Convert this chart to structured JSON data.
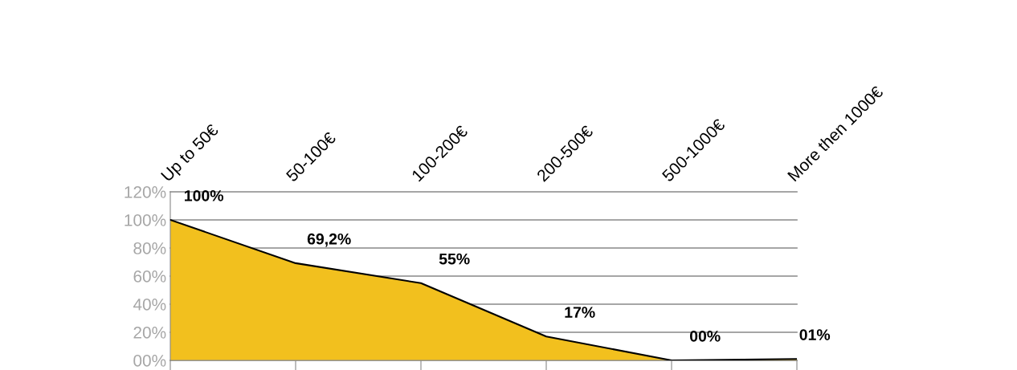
{
  "chart_data": {
    "type": "area",
    "categories": [
      "Up to 50€",
      "50-100€",
      "100-200€",
      "200-500€",
      "500-1000€",
      "More then 1000€"
    ],
    "series": [
      {
        "color": "#f2c01e",
        "values": [
          100,
          69.2,
          55,
          17,
          0,
          1
        ],
        "value_labels": [
          "100%",
          "69,2%",
          "55%",
          "17%",
          "00%",
          "01%"
        ]
      }
    ],
    "ylim": [
      0,
      120
    ],
    "yticks": [
      {
        "value": 0,
        "label": "00%"
      },
      {
        "value": 20,
        "label": "20%"
      },
      {
        "value": 40,
        "label": "40%"
      },
      {
        "value": 60,
        "label": "60%"
      },
      {
        "value": 80,
        "label": "80%"
      },
      {
        "value": 100,
        "label": "100%"
      },
      {
        "value": 120,
        "label": "120%"
      }
    ],
    "grid": "y",
    "legend": false,
    "marker": "none",
    "line_style": "solid"
  }
}
